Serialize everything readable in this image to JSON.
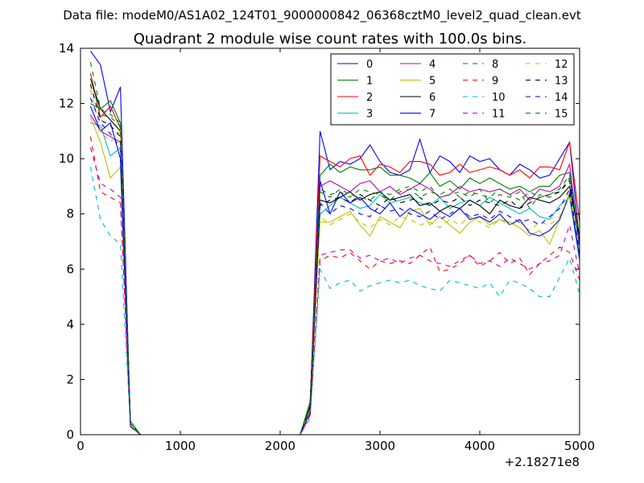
{
  "chart_data": {
    "type": "line",
    "suptitle": "Data file: modeM0/AS1A02_124T01_9000000842_06368cztM0_level2_quad_clean.evt",
    "title": "Quadrant 2 module wise count rates with 100.0s bins.",
    "xlabel": "",
    "ylabel": "",
    "x_offset_label": "+2.18271e8",
    "xlim": [
      0,
      5000
    ],
    "ylim": [
      0,
      14
    ],
    "xticks": [
      0,
      1000,
      2000,
      3000,
      4000,
      5000
    ],
    "yticks": [
      0,
      2,
      4,
      6,
      8,
      10,
      12,
      14
    ],
    "grid": false,
    "legend": {
      "placement": "top-right",
      "columns": 4
    },
    "x": [
      100,
      200,
      300,
      400,
      500,
      600,
      700,
      800,
      900,
      1000,
      1100,
      1200,
      1300,
      1400,
      1500,
      1600,
      1700,
      1800,
      1900,
      2000,
      2100,
      2200,
      2300,
      2400,
      2500,
      2600,
      2700,
      2800,
      2900,
      3000,
      3100,
      3200,
      3300,
      3400,
      3500,
      3600,
      3700,
      3800,
      3900,
      4000,
      4100,
      4200,
      4300,
      4400,
      4500,
      4600,
      4700,
      4800,
      4900,
      5000
    ],
    "series": [
      {
        "name": "0",
        "color": "#0000ff",
        "dash": "solid",
        "values": [
          13.9,
          13.4,
          11.7,
          12.6,
          0.4,
          0,
          0,
          0,
          0,
          0,
          0,
          0,
          0,
          0,
          0,
          0,
          0,
          0,
          0,
          0,
          0,
          0,
          1.0,
          11.0,
          9.6,
          9.9,
          9.8,
          10.0,
          10.5,
          9.9,
          9.5,
          9.4,
          9.6,
          10.7,
          9.5,
          10.1,
          9.9,
          9.5,
          10.1,
          9.9,
          10.0,
          9.6,
          9.4,
          9.8,
          9.6,
          9.3,
          9.4,
          10.0,
          10.6,
          7.0
        ]
      },
      {
        "name": "1",
        "color": "#008000",
        "dash": "solid",
        "values": [
          12.0,
          11.8,
          12.1,
          11.3,
          0.5,
          0,
          0,
          0,
          0,
          0,
          0,
          0,
          0,
          0,
          0,
          0,
          0,
          0,
          0,
          0,
          0,
          0,
          1.2,
          9.4,
          9.8,
          9.5,
          9.7,
          9.6,
          9.6,
          9.7,
          9.4,
          9.4,
          9.3,
          9.1,
          9.5,
          9.0,
          9.2,
          8.9,
          9.3,
          9.1,
          9.3,
          9.1,
          8.9,
          9.0,
          8.8,
          9.0,
          9.0,
          9.4,
          9.5,
          6.8
        ]
      },
      {
        "name": "2",
        "color": "#ff0000",
        "dash": "solid",
        "values": [
          13.1,
          11.5,
          11.9,
          11.1,
          0.4,
          0,
          0,
          0,
          0,
          0,
          0,
          0,
          0,
          0,
          0,
          0,
          0,
          0,
          0,
          0,
          0,
          0,
          1.1,
          10.1,
          9.9,
          9.7,
          10.0,
          10.1,
          9.4,
          9.8,
          9.7,
          9.5,
          9.9,
          9.9,
          9.8,
          9.4,
          9.5,
          9.8,
          9.5,
          9.6,
          9.7,
          9.6,
          9.4,
          9.6,
          9.3,
          9.7,
          9.7,
          9.6,
          10.6,
          7.7
        ]
      },
      {
        "name": "3",
        "color": "#00bfbf",
        "dash": "solid",
        "values": [
          11.3,
          11.2,
          10.1,
          10.4,
          0.4,
          0,
          0,
          0,
          0,
          0,
          0,
          0,
          0,
          0,
          0,
          0,
          0,
          0,
          0,
          0,
          0,
          0,
          0.9,
          8.0,
          8.3,
          8.6,
          8.4,
          8.2,
          8.3,
          8.7,
          8.4,
          8.5,
          8.6,
          8.4,
          8.3,
          8.6,
          8.2,
          8.4,
          8.5,
          8.3,
          8.6,
          8.4,
          8.2,
          8.0,
          8.2,
          7.9,
          7.8,
          8.3,
          8.6,
          6.3
        ]
      },
      {
        "name": "4",
        "color": "#bf00bf",
        "dash": "solid",
        "values": [
          11.6,
          11.0,
          10.8,
          10.6,
          0.4,
          0,
          0,
          0,
          0,
          0,
          0,
          0,
          0,
          0,
          0,
          0,
          0,
          0,
          0,
          0,
          0,
          0,
          1.0,
          9.0,
          9.2,
          9.0,
          8.8,
          9.1,
          9.2,
          8.8,
          9.0,
          8.7,
          8.9,
          9.1,
          8.9,
          8.6,
          8.7,
          9.0,
          8.8,
          8.9,
          8.8,
          8.9,
          8.7,
          8.9,
          8.5,
          8.9,
          8.8,
          9.0,
          9.8,
          6.8
        ]
      },
      {
        "name": "5",
        "color": "#bfbf00",
        "dash": "solid",
        "values": [
          11.5,
          10.6,
          9.3,
          9.7,
          0.4,
          0,
          0,
          0,
          0,
          0,
          0,
          0,
          0,
          0,
          0,
          0,
          0,
          0,
          0,
          0,
          0,
          0,
          0.9,
          7.7,
          7.7,
          7.9,
          8.1,
          7.6,
          7.2,
          7.9,
          7.7,
          7.5,
          8.1,
          8.2,
          7.6,
          7.9,
          7.6,
          7.3,
          7.7,
          7.9,
          7.6,
          7.8,
          7.7,
          7.5,
          7.2,
          7.4,
          6.9,
          7.8,
          8.8,
          6.6
        ]
      },
      {
        "name": "6",
        "color": "#000000",
        "dash": "solid",
        "values": [
          12.9,
          11.8,
          11.4,
          11.0,
          0.4,
          0,
          0,
          0,
          0,
          0,
          0,
          0,
          0,
          0,
          0,
          0,
          0,
          0,
          0,
          0,
          0,
          0,
          1.0,
          8.5,
          8.4,
          8.6,
          8.8,
          8.5,
          8.7,
          8.8,
          8.5,
          8.6,
          8.7,
          8.3,
          8.4,
          8.1,
          8.3,
          8.2,
          8.5,
          8.3,
          8.0,
          8.5,
          8.3,
          8.2,
          8.6,
          8.5,
          8.4,
          8.6,
          9.0,
          7.1
        ]
      },
      {
        "name": "7",
        "color": "#0000ff",
        "dash": "solid",
        "values": [
          11.9,
          11.0,
          11.3,
          10.0,
          0.3,
          0,
          0,
          0,
          0,
          0,
          0,
          0,
          0,
          0,
          0,
          0,
          0,
          0,
          0,
          0,
          0,
          0,
          0.8,
          9.2,
          8.0,
          8.8,
          8.4,
          8.6,
          8.2,
          8.0,
          8.4,
          7.9,
          8.2,
          8.0,
          7.8,
          8.1,
          7.9,
          8.2,
          7.8,
          7.9,
          7.7,
          8.0,
          7.6,
          7.8,
          7.3,
          7.2,
          7.4,
          7.8,
          8.7,
          6.4
        ]
      },
      {
        "name": "8",
        "color": "#008000",
        "dash": "dashed",
        "values": [
          13.5,
          11.8,
          11.6,
          11.3,
          0.4,
          0,
          0,
          0,
          0,
          0,
          0,
          0,
          0,
          0,
          0,
          0,
          0,
          0,
          0,
          0,
          0,
          0,
          1.1,
          8.8,
          8.6,
          8.9,
          8.7,
          8.6,
          8.5,
          8.8,
          8.7,
          8.9,
          9.0,
          8.8,
          9.0,
          8.6,
          8.7,
          8.8,
          8.6,
          8.9,
          8.4,
          8.7,
          8.6,
          8.8,
          8.2,
          8.7,
          8.6,
          8.8,
          9.3,
          7.1
        ]
      },
      {
        "name": "9",
        "color": "#ff0000",
        "dash": "dashed",
        "values": [
          10.8,
          8.8,
          8.6,
          8.4,
          0.3,
          0,
          0,
          0,
          0,
          0,
          0,
          0,
          0,
          0,
          0,
          0,
          0,
          0,
          0,
          0,
          0,
          0,
          0.7,
          6.3,
          6.5,
          6.4,
          6.6,
          6.3,
          6.0,
          6.3,
          6.2,
          6.3,
          6.2,
          6.5,
          6.8,
          5.9,
          6.0,
          6.2,
          6.5,
          6.1,
          6.3,
          6.6,
          6.2,
          6.4,
          5.8,
          6.2,
          6.5,
          6.8,
          6.6,
          5.6
        ]
      },
      {
        "name": "10",
        "color": "#00bfbf",
        "dash": "dashed",
        "values": [
          9.7,
          7.8,
          7.2,
          6.9,
          0.3,
          0,
          0,
          0,
          0,
          0,
          0,
          0,
          0,
          0,
          0,
          0,
          0,
          0,
          0,
          0,
          0,
          0,
          0.6,
          6.0,
          5.3,
          5.5,
          5.6,
          5.2,
          5.4,
          5.5,
          5.6,
          5.5,
          5.6,
          5.4,
          5.3,
          5.2,
          5.6,
          5.5,
          5.4,
          5.3,
          5.5,
          5.0,
          5.6,
          5.5,
          5.3,
          5.0,
          5.0,
          5.7,
          6.4,
          5.1
        ]
      },
      {
        "name": "11",
        "color": "#bf00bf",
        "dash": "dashed",
        "values": [
          10.4,
          9.1,
          8.9,
          8.6,
          0.3,
          0,
          0,
          0,
          0,
          0,
          0,
          0,
          0,
          0,
          0,
          0,
          0,
          0,
          0,
          0,
          0,
          0,
          0.7,
          6.5,
          6.6,
          6.7,
          6.7,
          6.4,
          6.5,
          6.3,
          6.4,
          6.2,
          6.4,
          6.5,
          6.3,
          6.2,
          6.1,
          6.3,
          6.5,
          6.2,
          6.3,
          6.1,
          6.4,
          6.2,
          6.0,
          6.2,
          6.3,
          6.5,
          7.6,
          5.8
        ]
      },
      {
        "name": "12",
        "color": "#bfbf00",
        "dash": "dashed",
        "values": [
          12.5,
          11.0,
          10.6,
          11.0,
          0.4,
          0,
          0,
          0,
          0,
          0,
          0,
          0,
          0,
          0,
          0,
          0,
          0,
          0,
          0,
          0,
          0,
          0,
          0.9,
          7.9,
          7.6,
          7.8,
          8.0,
          7.7,
          7.5,
          7.8,
          7.6,
          7.9,
          7.8,
          7.6,
          7.7,
          7.5,
          7.8,
          7.6,
          7.9,
          7.7,
          7.5,
          7.8,
          7.6,
          7.7,
          7.4,
          7.7,
          7.6,
          7.9,
          8.7,
          6.8
        ]
      },
      {
        "name": "13",
        "color": "#000000",
        "dash": "dashed",
        "values": [
          12.7,
          11.4,
          11.2,
          10.8,
          0.4,
          0,
          0,
          0,
          0,
          0,
          0,
          0,
          0,
          0,
          0,
          0,
          0,
          0,
          0,
          0,
          0,
          0,
          1.0,
          8.3,
          8.5,
          8.6,
          8.4,
          8.7,
          8.5,
          8.3,
          8.6,
          8.4,
          8.5,
          8.6,
          8.3,
          8.5,
          8.4,
          8.6,
          8.3,
          8.5,
          8.4,
          8.3,
          8.5,
          8.2,
          8.4,
          8.6,
          8.7,
          8.8,
          9.2,
          7.0
        ]
      },
      {
        "name": "14",
        "color": "#0000ff",
        "dash": "dashed",
        "values": [
          12.2,
          11.3,
          10.9,
          10.4,
          0.3,
          0,
          0,
          0,
          0,
          0,
          0,
          0,
          0,
          0,
          0,
          0,
          0,
          0,
          0,
          0,
          0,
          0,
          0.8,
          8.4,
          8.0,
          8.3,
          8.2,
          8.0,
          7.9,
          8.3,
          8.1,
          8.2,
          8.0,
          7.9,
          8.1,
          7.8,
          8.0,
          8.2,
          7.9,
          8.0,
          7.8,
          8.1,
          7.9,
          7.7,
          7.8,
          7.6,
          7.9,
          8.2,
          8.9,
          6.6
        ]
      },
      {
        "name": "15",
        "color": "#008000",
        "dash": "dashed",
        "values": [
          12.9,
          11.6,
          11.5,
          11.2,
          0.4,
          0,
          0,
          0,
          0,
          0,
          0,
          0,
          0,
          0,
          0,
          0,
          0,
          0,
          0,
          0,
          0,
          0,
          1.1,
          8.9,
          8.7,
          8.8,
          8.6,
          8.9,
          8.8,
          8.7,
          8.5,
          8.8,
          8.9,
          8.6,
          8.8,
          8.7,
          8.9,
          8.6,
          8.8,
          8.7,
          8.6,
          8.9,
          8.7,
          8.5,
          8.8,
          8.6,
          8.7,
          8.9,
          9.4,
          7.2
        ]
      }
    ]
  }
}
